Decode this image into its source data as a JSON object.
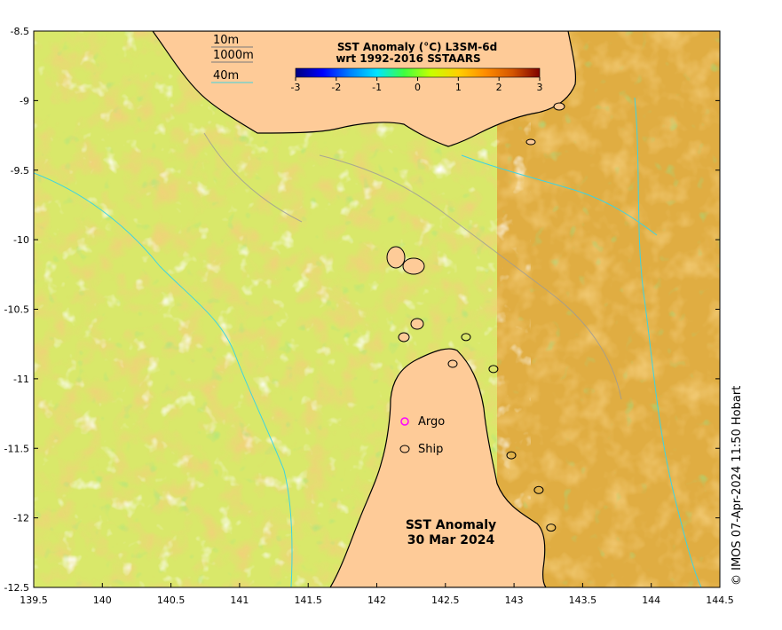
{
  "map": {
    "colorbar": {
      "title": "SST Anomaly (°C) L3SM-6d",
      "subtitle": "wrt 1992-2016 SSTAARS",
      "ticks": [
        "-3",
        "-2",
        "-1",
        "0",
        "1",
        "2",
        "3"
      ],
      "stops": [
        "#00007f",
        "#0000ff",
        "#0080ff",
        "#00e5ff",
        "#3fff3f",
        "#c8ff00",
        "#ffd000",
        "#ff8c00",
        "#d45500",
        "#7f0000"
      ]
    },
    "depth_legend": [
      "10m",
      "1000m",
      "40m"
    ],
    "symbol_legend": {
      "argo": "Argo",
      "ship": "Ship"
    },
    "date_title": {
      "line1": "SST Anomaly",
      "line2": "30 Mar 2024"
    },
    "credit": "© IMOS 07-Apr-2024 11:50 Hobart",
    "x_ticks": [
      "139.5",
      "140",
      "140.5",
      "141",
      "141.5",
      "142",
      "142.5",
      "143",
      "143.5",
      "144",
      "144.5"
    ],
    "y_ticks": [
      "-8.5",
      "-9",
      "-9.5",
      "-10",
      "-10.5",
      "-11",
      "-11.5",
      "-12",
      "-12.5"
    ],
    "colors": {
      "land": "#fecb98",
      "ocean_base": "#d9e86a",
      "warm": "#e8a33a",
      "cool": "#4fc63c",
      "isobath": "#3fd3e0"
    },
    "ship_positions": [
      {
        "lon": 142.65,
        "lat": -10.7
      },
      {
        "lon": 142.85,
        "lat": -10.93
      },
      {
        "lon": 142.98,
        "lat": -11.55
      },
      {
        "lon": 143.18,
        "lat": -11.8
      },
      {
        "lon": 143.27,
        "lat": -12.07
      }
    ]
  }
}
